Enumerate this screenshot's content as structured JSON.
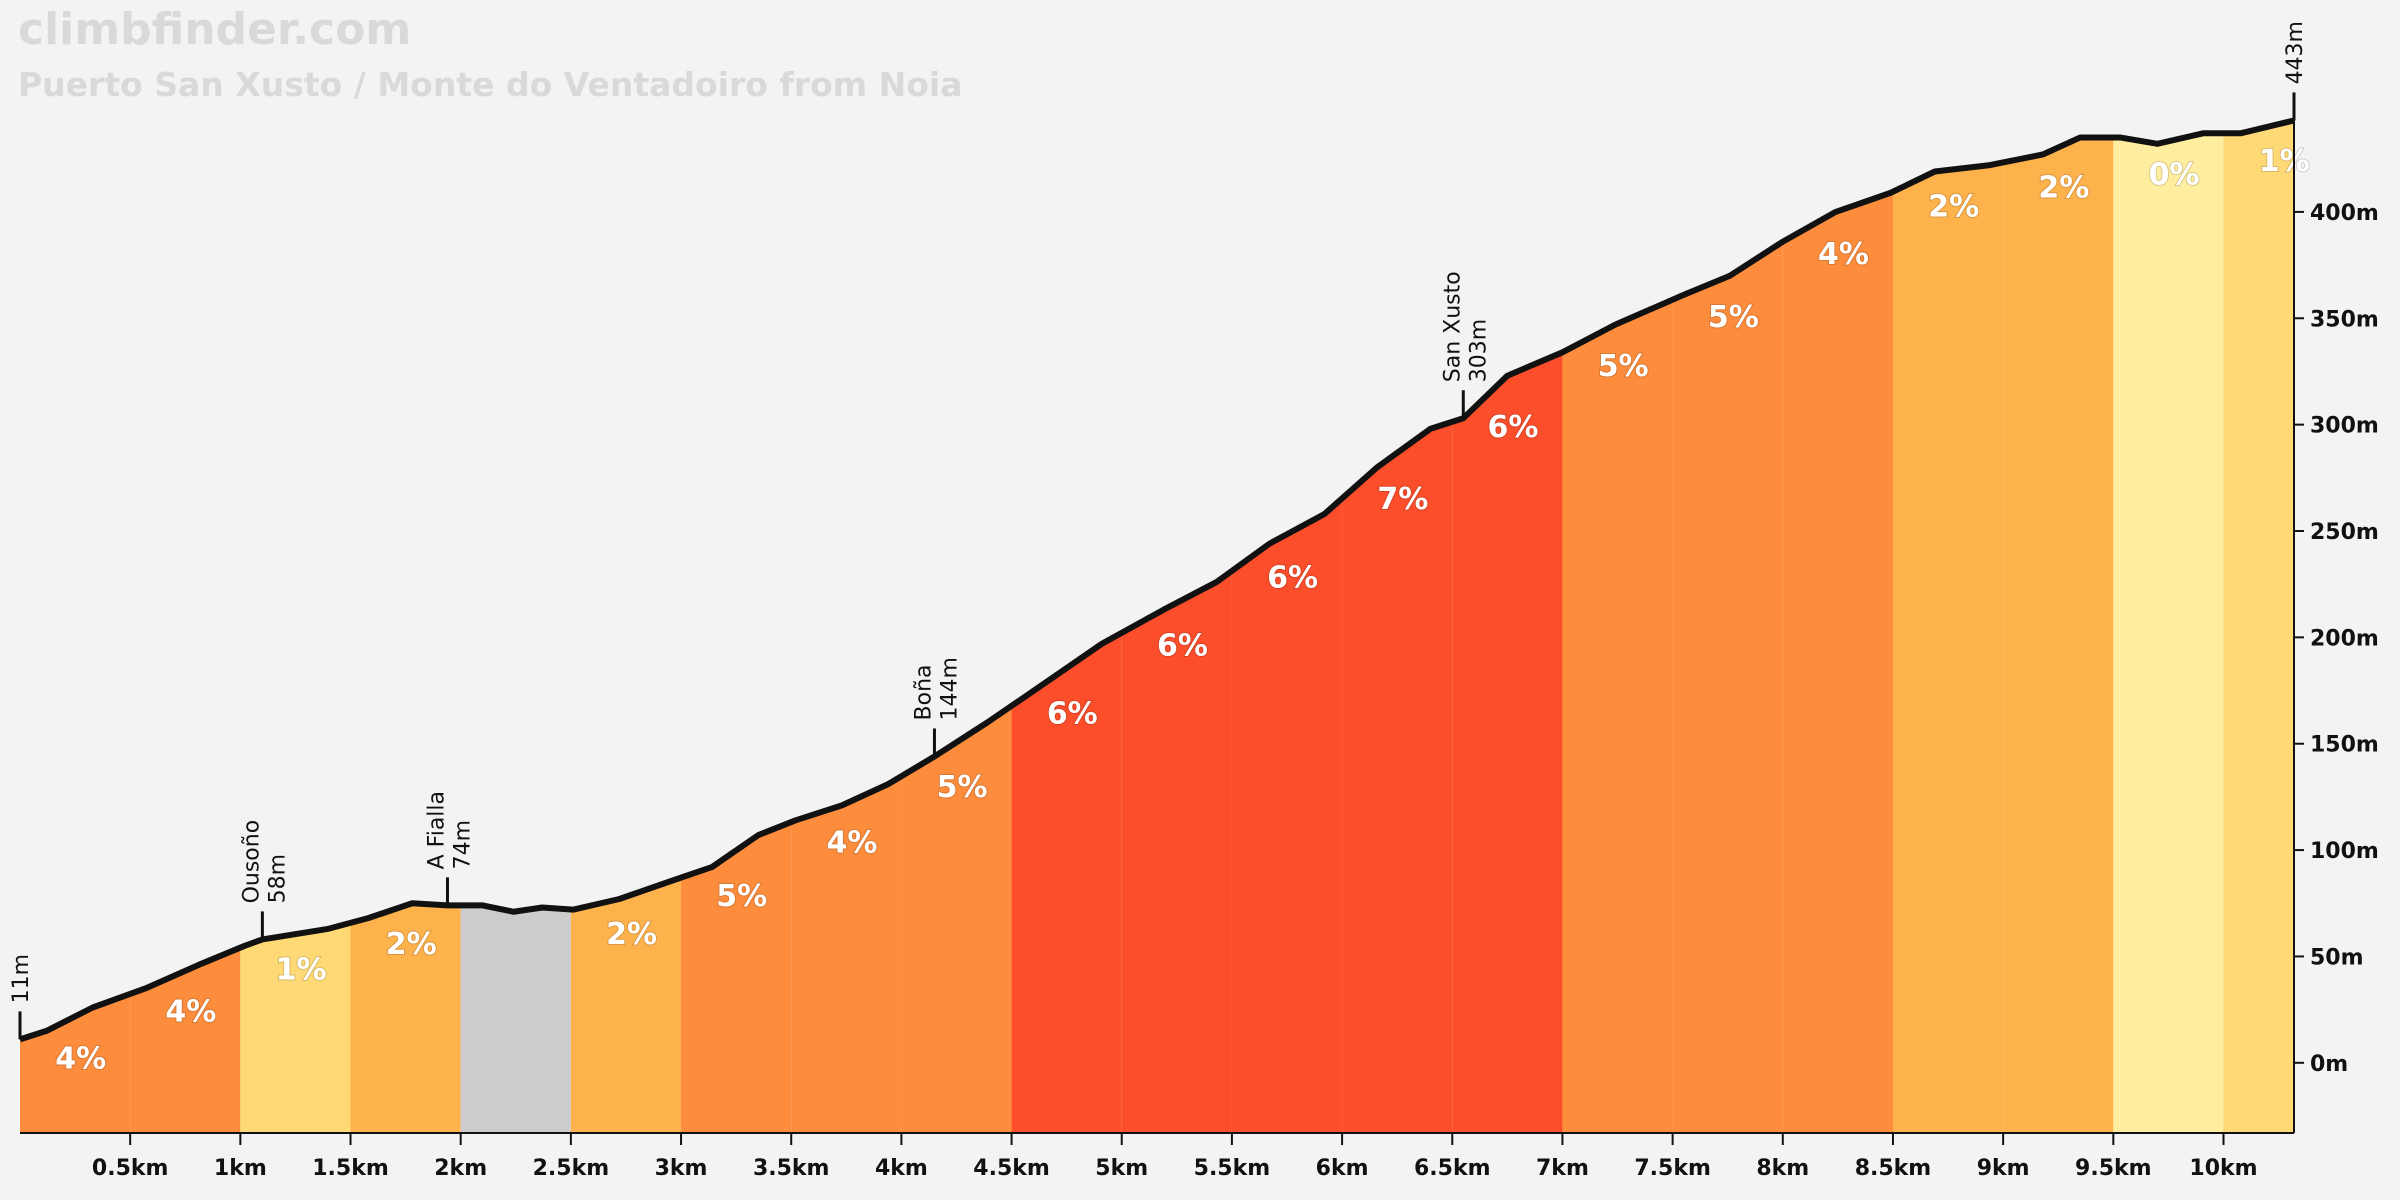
{
  "chart_data": {
    "type": "profile",
    "brand": "climbfinder.com",
    "title": "Puerto San Xusto / Monte do Ventadoiro from Noia",
    "xlim": [
      0,
      10.32
    ],
    "ylim": [
      -33,
      470
    ],
    "xticks": [
      {
        "value": 0.5,
        "label": "0.5km"
      },
      {
        "value": 1,
        "label": "1km"
      },
      {
        "value": 1.5,
        "label": "1.5km"
      },
      {
        "value": 2,
        "label": "2km"
      },
      {
        "value": 2.5,
        "label": "2.5km"
      },
      {
        "value": 3,
        "label": "3km"
      },
      {
        "value": 3.5,
        "label": "3.5km"
      },
      {
        "value": 4,
        "label": "4km"
      },
      {
        "value": 4.5,
        "label": "4.5km"
      },
      {
        "value": 5,
        "label": "5km"
      },
      {
        "value": 5.5,
        "label": "5.5km"
      },
      {
        "value": 6,
        "label": "6km"
      },
      {
        "value": 6.5,
        "label": "6.5km"
      },
      {
        "value": 7,
        "label": "7km"
      },
      {
        "value": 7.5,
        "label": "7.5km"
      },
      {
        "value": 8,
        "label": "8km"
      },
      {
        "value": 8.5,
        "label": "8.5km"
      },
      {
        "value": 9,
        "label": "9km"
      },
      {
        "value": 9.5,
        "label": "9.5km"
      },
      {
        "value": 10,
        "label": "10km"
      }
    ],
    "yticks": [
      {
        "value": 0,
        "label": "0m"
      },
      {
        "value": 50,
        "label": "50m"
      },
      {
        "value": 100,
        "label": "100m"
      },
      {
        "value": 150,
        "label": "150m"
      },
      {
        "value": 200,
        "label": "200m"
      },
      {
        "value": 250,
        "label": "250m"
      },
      {
        "value": 300,
        "label": "300m"
      },
      {
        "value": 350,
        "label": "350m"
      },
      {
        "value": 400,
        "label": "400m"
      }
    ],
    "profile": {
      "color": "#111111",
      "x": [
        0,
        0.12,
        0.33,
        0.57,
        0.81,
        1.02,
        1.1,
        1.4,
        1.58,
        1.78,
        1.94,
        2.1,
        2.24,
        2.37,
        2.51,
        2.72,
        2.97,
        3.14,
        3.35,
        3.52,
        3.73,
        3.94,
        4.15,
        4.39,
        4.63,
        4.91,
        5.19,
        5.43,
        5.67,
        5.92,
        6.16,
        6.4,
        6.55,
        6.75,
        7.0,
        7.24,
        7.55,
        7.76,
        8.0,
        8.24,
        8.49,
        8.69,
        8.94,
        9.18,
        9.35,
        9.53,
        9.7,
        9.91,
        10.08,
        10.32
      ],
      "elevation": [
        11,
        15,
        26,
        35,
        46,
        55,
        58,
        63,
        68,
        75,
        74,
        74,
        71,
        73,
        72,
        77,
        86,
        92,
        107,
        114,
        121,
        131,
        144,
        160,
        177,
        197,
        213,
        226,
        244,
        258,
        280,
        298,
        303,
        323,
        334,
        347,
        361,
        370,
        386,
        400,
        409,
        419,
        422,
        427,
        435,
        435,
        432,
        437,
        437,
        443
      ]
    },
    "segments": {
      "bins": [
        0,
        0.5,
        1,
        1.5,
        2,
        2.5,
        3,
        3.5,
        4,
        4.5,
        5,
        5.5,
        6,
        6.5,
        7,
        7.5,
        8,
        8.5,
        9,
        9.5,
        10,
        10.32
      ],
      "values": [
        4,
        4,
        1,
        2,
        null,
        2,
        5,
        4,
        5,
        6,
        6,
        6,
        7,
        6,
        5,
        5,
        4,
        2,
        2,
        0,
        1
      ],
      "value_labels": [
        "4%",
        "4%",
        "1%",
        "2%",
        null,
        "2%",
        "5%",
        "4%",
        "5%",
        "6%",
        "6%",
        "6%",
        "7%",
        "6%",
        "5%",
        "5%",
        "4%",
        "2%",
        "2%",
        "0%",
        "1%"
      ],
      "colors": [
        "#fd8d3c",
        "#fd8d3c",
        "#fed976",
        "#feb24c",
        "#cccccc",
        "#feb24c",
        "#fd8d3c",
        "#fd8d3c",
        "#fd8d3c",
        "#fc4e2a",
        "#fc4e2a",
        "#fc4e2a",
        "#fc4e2a",
        "#fc4e2a",
        "#fd8d3c",
        "#fd8d3c",
        "#fd8d3c",
        "#feb24c",
        "#feb24c",
        "#ffeda0",
        "#fed976"
      ]
    },
    "waypoints": {
      "x": [
        0,
        1.1,
        1.94,
        4.15,
        6.55,
        10.32
      ],
      "names": [
        null,
        "Ousoño",
        "A Fialla",
        "Boña",
        "San Xusto",
        null
      ],
      "values": [
        11,
        58,
        74,
        144,
        303,
        443
      ],
      "value_labels": [
        "11m",
        "58m",
        "74m",
        "144m",
        "303m",
        "443m"
      ]
    }
  }
}
